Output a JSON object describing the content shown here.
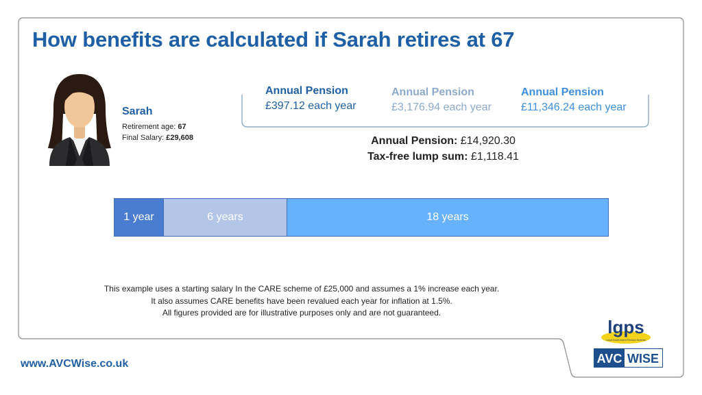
{
  "title": "How benefits are calculated if Sarah retires at 67",
  "person": {
    "name": "Sarah",
    "retirement_age_label": "Retirement age: ",
    "retirement_age": "67",
    "final_salary_label": "Final Salary: ",
    "final_salary": "£29,608"
  },
  "pensions": [
    {
      "label": "Annual Pension",
      "value": "£397.12 each year",
      "color": "#1f5fa6"
    },
    {
      "label": "Annual Pension",
      "value": "£3,176.94 each year",
      "color": "#8ea9c9"
    },
    {
      "label": "Annual Pension",
      "value": "£11,346.24 each year",
      "color": "#3d8fe0"
    }
  ],
  "summary": {
    "annual_label": "Annual Pension:",
    "annual_value": "£14,920.30",
    "lump_label": "Tax-free lump sum:",
    "lump_value": "£1,118.41"
  },
  "timeline": [
    {
      "label": "1 year",
      "years": 1,
      "color": "#4a7cd0"
    },
    {
      "label": "6 years",
      "years": 6,
      "color": "#b4c6e7"
    },
    {
      "label": "18 years",
      "years": 18,
      "color": "#66b2ff"
    }
  ],
  "notes": [
    "This example uses a starting salary In the CARE scheme of £25,000 and assumes a 1% increase each year.",
    "It also assumes CARE benefits have been revalued each year for inflation at 1.5%.",
    "All figures provided are for illustrative purposes only and are not guaranteed."
  ],
  "website": "www.AVCWise.co.uk",
  "logos": {
    "lgps": "lgps",
    "lgps_tagline": "Local Government Pension Scheme",
    "avc_left": "AVC",
    "avc_right": "WISE"
  }
}
